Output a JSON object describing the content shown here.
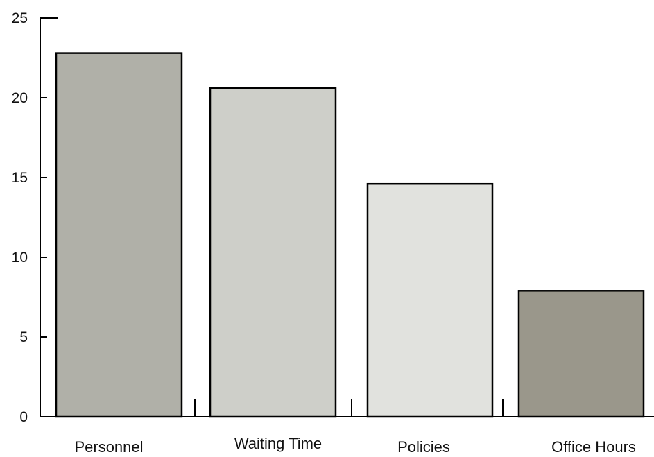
{
  "chart_data": {
    "type": "bar",
    "title": "",
    "xlabel": "",
    "ylabel": "",
    "categories": [
      "Personnel",
      "Waiting Time",
      "Policies",
      "Office Hours"
    ],
    "values": [
      22.8,
      20.6,
      14.6,
      7.9
    ],
    "colors": [
      "#b0b0a8",
      "#cecfc9",
      "#e1e2de",
      "#9a978b"
    ],
    "ylim": [
      0,
      25
    ],
    "yticks": [
      0,
      5,
      10,
      15,
      20,
      25
    ],
    "grid": false,
    "legend": "none"
  }
}
